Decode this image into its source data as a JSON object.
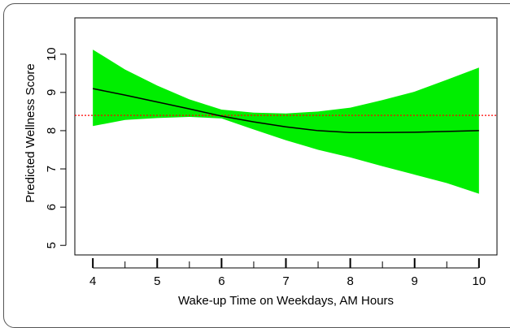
{
  "chart_data": {
    "type": "line",
    "xlabel": "Wake-up Time on Weekdays, AM Hours",
    "ylabel": "Predicted Wellness Score",
    "xlim": [
      3.72,
      10.28
    ],
    "ylim": [
      4.75,
      10.95
    ],
    "x_ticks": [
      4,
      5,
      6,
      7,
      8,
      9,
      10
    ],
    "y_ticks": [
      5,
      6,
      7,
      8,
      9,
      10
    ],
    "minor_x_ticks": [
      4.5,
      5.5,
      6.5,
      7.5,
      8.5,
      9.5
    ],
    "grid": false,
    "legend": "none",
    "colors": {
      "band": "#00ee00",
      "line": "#000000",
      "reference": "#ff0000"
    },
    "reference_line": {
      "y": 8.4,
      "style": "dotted"
    },
    "series": [
      {
        "kind": "fit",
        "x": [
          4,
          4.5,
          5,
          5.5,
          6,
          6.5,
          7,
          7.5,
          8,
          8.5,
          9,
          9.5,
          10
        ],
        "y": [
          9.1,
          8.93,
          8.75,
          8.57,
          8.38,
          8.23,
          8.1,
          8.0,
          7.95,
          7.95,
          7.96,
          7.98,
          8.0
        ],
        "lower": [
          8.12,
          8.28,
          8.33,
          8.36,
          8.32,
          8.03,
          7.75,
          7.5,
          7.3,
          7.07,
          6.85,
          6.63,
          6.35
        ],
        "upper": [
          10.12,
          9.6,
          9.18,
          8.82,
          8.55,
          8.47,
          8.45,
          8.5,
          8.6,
          8.8,
          9.02,
          9.33,
          9.65
        ]
      }
    ]
  }
}
